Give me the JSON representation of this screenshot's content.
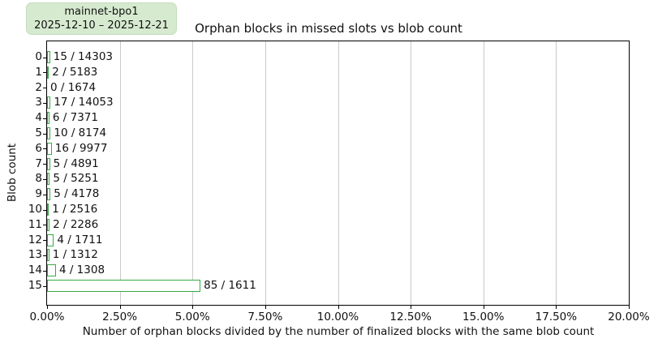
{
  "badge": {
    "line1": "mainnet-bpo1",
    "line2": "2025-12-10 – 2025-12-21"
  },
  "chart_data": {
    "type": "bar",
    "orientation": "horizontal",
    "title": "Orphan blocks in missed slots vs blob count",
    "xlabel": "Number of orphan blocks divided by the number of finalized blocks with the same blob count",
    "ylabel": "Blob count",
    "xlim": [
      0,
      20
    ],
    "x_unit": "%",
    "xtick_labels": [
      "0.00%",
      "2.50%",
      "5.00%",
      "7.50%",
      "10.00%",
      "12.50%",
      "15.00%",
      "17.50%",
      "20.00%"
    ],
    "grid": "vertical",
    "legend_position": "none",
    "categories": [
      "0",
      "1",
      "2",
      "3",
      "4",
      "5",
      "6",
      "7",
      "8",
      "9",
      "10",
      "11",
      "12",
      "13",
      "14",
      "15"
    ],
    "bars": [
      {
        "blob_count": "0",
        "orphans": 15,
        "finalized": 14303,
        "label": "15 / 14303",
        "value_pct": 0.105
      },
      {
        "blob_count": "1",
        "orphans": 2,
        "finalized": 5183,
        "label": "2 / 5183",
        "value_pct": 0.039
      },
      {
        "blob_count": "2",
        "orphans": 0,
        "finalized": 1674,
        "label": "0 / 1674",
        "value_pct": 0.0
      },
      {
        "blob_count": "3",
        "orphans": 17,
        "finalized": 14053,
        "label": "17 / 14053",
        "value_pct": 0.121
      },
      {
        "blob_count": "4",
        "orphans": 6,
        "finalized": 7371,
        "label": "6 / 7371",
        "value_pct": 0.081
      },
      {
        "blob_count": "5",
        "orphans": 10,
        "finalized": 8174,
        "label": "10 / 8174",
        "value_pct": 0.122
      },
      {
        "blob_count": "6",
        "orphans": 16,
        "finalized": 9977,
        "label": "16 / 9977",
        "value_pct": 0.16
      },
      {
        "blob_count": "7",
        "orphans": 5,
        "finalized": 4891,
        "label": "5 / 4891",
        "value_pct": 0.102
      },
      {
        "blob_count": "8",
        "orphans": 5,
        "finalized": 5251,
        "label": "5 / 5251",
        "value_pct": 0.095
      },
      {
        "blob_count": "9",
        "orphans": 5,
        "finalized": 4178,
        "label": "5 / 4178",
        "value_pct": 0.12
      },
      {
        "blob_count": "10",
        "orphans": 1,
        "finalized": 2516,
        "label": "1 / 2516",
        "value_pct": 0.04
      },
      {
        "blob_count": "11",
        "orphans": 2,
        "finalized": 2286,
        "label": "2 / 2286",
        "value_pct": 0.087
      },
      {
        "blob_count": "12",
        "orphans": 4,
        "finalized": 1711,
        "label": "4 / 1711",
        "value_pct": 0.234
      },
      {
        "blob_count": "13",
        "orphans": 1,
        "finalized": 1312,
        "label": "1 / 1312",
        "value_pct": 0.076
      },
      {
        "blob_count": "14",
        "orphans": 4,
        "finalized": 1308,
        "label": "4 / 1308",
        "value_pct": 0.306
      },
      {
        "blob_count": "15",
        "orphans": 85,
        "finalized": 1611,
        "label": "85 / 1611",
        "value_pct": 5.276
      }
    ]
  },
  "colors": {
    "bar_edge": "#38a944",
    "bar_fill": "#ffffff",
    "badge_bg": "#d6ead0",
    "gridline": "#c9c9c9",
    "spine": "#000000"
  }
}
